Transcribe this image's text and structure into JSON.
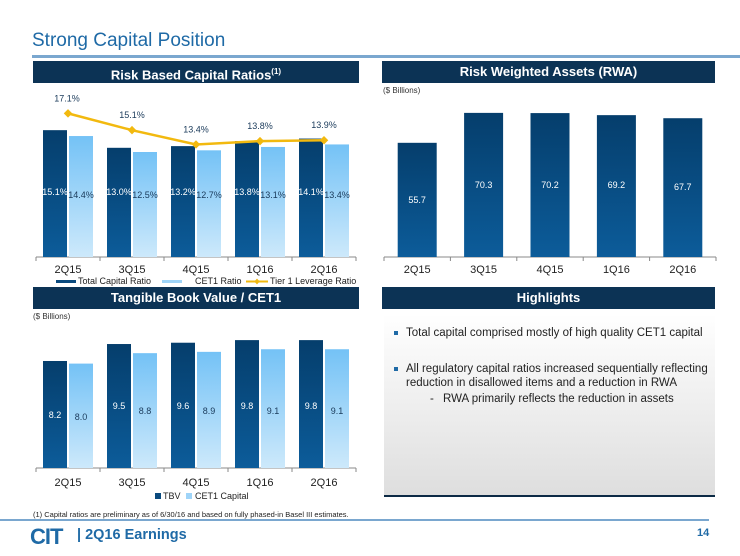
{
  "page": {
    "title": "Strong Capital Position",
    "footnote": "(1) Capital ratios are preliminary as of 6/30/16 and based on fully phased-in Basel III estimates.",
    "footer_logo": "CIT",
    "footer_label": "| 2Q16 Earnings",
    "page_number": "14"
  },
  "colors": {
    "header_bg": "#0c3355",
    "dark_bar": "#0a4a7e",
    "light_bar": "#7cc6f7",
    "line": "#f2b90f",
    "title": "#1f6aa6"
  },
  "panels": {
    "capital_ratios": {
      "header": "Risk Based Capital Ratios",
      "header_sup": "(1)"
    },
    "rwa": {
      "header": "Risk Weighted Assets (RWA)",
      "unit": "($ Billions)"
    },
    "tbv": {
      "header": "Tangible Book Value / CET1",
      "unit": "($ Billions)"
    },
    "highlights": {
      "header": "Highlights",
      "bullets": [
        "Total capital comprised mostly of high quality CET1 capital",
        "All regulatory capital ratios increased sequentially reflecting",
        "reduction in disallowed items and a reduction in RWA"
      ],
      "sub_dash": "-",
      "sub_bullet": "RWA primarily reflects the reduction in assets"
    }
  },
  "chart_data": [
    {
      "type": "bar",
      "title": "Risk Based Capital Ratios",
      "categories": [
        "2Q15",
        "3Q15",
        "4Q15",
        "1Q16",
        "2Q16"
      ],
      "series": [
        {
          "name": "Total Capital Ratio",
          "kind": "bar",
          "values": [
            15.1,
            13.0,
            13.2,
            13.8,
            14.1
          ],
          "labels": [
            "15.1%",
            "13.0%",
            "13.2%",
            "13.8%",
            "14.1%"
          ]
        },
        {
          "name": "CET1 Ratio",
          "kind": "bar",
          "values": [
            14.4,
            12.5,
            12.7,
            13.1,
            13.4
          ],
          "labels": [
            "14.4%",
            "12.5%",
            "12.7%",
            "13.1%",
            "13.4%"
          ]
        },
        {
          "name": "Tier 1 Leverage Ratio",
          "kind": "line",
          "values": [
            17.1,
            15.1,
            13.4,
            13.8,
            13.9
          ],
          "labels": [
            "17.1%",
            "15.1%",
            "13.4%",
            "13.8%",
            "13.9%"
          ]
        }
      ],
      "ylim": [
        0,
        18
      ],
      "legend": "bottom"
    },
    {
      "type": "bar",
      "title": "Risk Weighted Assets (RWA)",
      "ylabel": "($ Billions)",
      "categories": [
        "2Q15",
        "3Q15",
        "4Q15",
        "1Q16",
        "2Q16"
      ],
      "values": [
        55.7,
        70.3,
        70.2,
        69.2,
        67.7
      ],
      "labels": [
        "55.7",
        "70.3",
        "70.2",
        "69.2",
        "67.7"
      ],
      "ylim": [
        0,
        75
      ]
    },
    {
      "type": "bar",
      "title": "Tangible Book Value / CET1",
      "ylabel": "($ Billions)",
      "categories": [
        "2Q15",
        "3Q15",
        "4Q15",
        "1Q16",
        "2Q16"
      ],
      "series": [
        {
          "name": "TBV",
          "values": [
            8.2,
            9.5,
            9.6,
            9.8,
            9.8
          ],
          "labels": [
            "8.2",
            "9.5",
            "9.6",
            "9.8",
            "9.8"
          ]
        },
        {
          "name": "CET1 Capital",
          "values": [
            8.0,
            8.8,
            8.9,
            9.1,
            9.1
          ],
          "labels": [
            "8.0",
            "8.8",
            "8.9",
            "9.1",
            "9.1"
          ]
        }
      ],
      "ylim": [
        0,
        10
      ],
      "legend": "bottom"
    }
  ]
}
